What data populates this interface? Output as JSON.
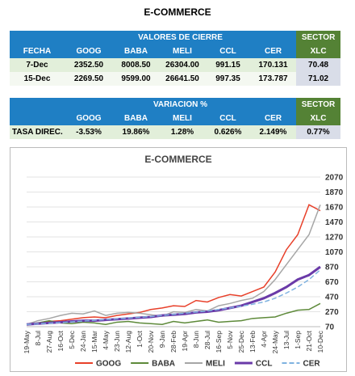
{
  "title": "E-COMMERCE",
  "table1": {
    "group_header": "VALORES DE CIERRE",
    "sector_header": "SECTOR",
    "columns": [
      "FECHA",
      "GOOG",
      "BABA",
      "MELI",
      "CCL",
      "CER",
      "XLC"
    ],
    "rows": [
      [
        "7-Dec",
        "2352.50",
        "8008.50",
        "26304.00",
        "991.15",
        "170.131",
        "70.48"
      ],
      [
        "15-Dec",
        "2269.50",
        "9599.00",
        "26641.50",
        "997.35",
        "173.787",
        "71.02"
      ]
    ]
  },
  "table2": {
    "group_header": "VARIACION %",
    "sector_header": "SECTOR",
    "columns": [
      "GOOG",
      "BABA",
      "MELI",
      "CCL",
      "CER",
      "XLC"
    ],
    "rows": [
      [
        "TASA DIREC.",
        "-3.53%",
        "19.86%",
        "1.28%",
        "0.626%",
        "2.149%",
        "0.77%"
      ]
    ]
  },
  "chart_data": {
    "type": "line",
    "title": "E-COMMERCE",
    "categories": [
      "19-May",
      "8-Jul",
      "27-Aug",
      "16-Oct",
      "5-Dec",
      "24-Jan",
      "15-Mar",
      "4-May",
      "23-Jun",
      "12-Aug",
      "1-Oct",
      "20-Nov",
      "9-Jan",
      "28-Feb",
      "19-Apr",
      "8-Jun",
      "28-Jul",
      "16-Sep",
      "5-Nov",
      "25-Dec",
      "13-Feb",
      "4-Apr",
      "24-May",
      "13-Jul",
      "1-Sep",
      "21-Oct",
      "10-Dec"
    ],
    "ylim": [
      70,
      2070
    ],
    "yticks": [
      70,
      270,
      470,
      670,
      870,
      1070,
      1270,
      1470,
      1670,
      1870,
      2070
    ],
    "grid": true,
    "legend": "bottom",
    "series": [
      {
        "name": "GOOG",
        "color": "#e8402a",
        "values": [
          100,
          110,
          140,
          150,
          170,
          190,
          200,
          190,
          220,
          240,
          260,
          300,
          320,
          350,
          340,
          420,
          400,
          460,
          500,
          480,
          540,
          600,
          800,
          1100,
          1300,
          1700,
          1620
        ]
      },
      {
        "name": "BABA",
        "color": "#5e8a3a",
        "values": [
          100,
          120,
          150,
          120,
          110,
          130,
          120,
          100,
          130,
          140,
          120,
          110,
          100,
          140,
          120,
          140,
          160,
          130,
          140,
          150,
          180,
          190,
          200,
          250,
          290,
          300,
          380
        ]
      },
      {
        "name": "MELI",
        "color": "#a6a6a6",
        "values": [
          100,
          150,
          180,
          220,
          250,
          240,
          280,
          220,
          250,
          260,
          250,
          230,
          210,
          270,
          260,
          300,
          280,
          350,
          380,
          420,
          450,
          540,
          700,
          900,
          1100,
          1300,
          1700
        ]
      },
      {
        "name": "CCL",
        "color": "#6a3aa8",
        "values": [
          100,
          110,
          120,
          130,
          140,
          150,
          150,
          160,
          170,
          180,
          190,
          200,
          220,
          230,
          240,
          260,
          270,
          290,
          320,
          350,
          400,
          450,
          520,
          600,
          700,
          760,
          870
        ]
      },
      {
        "name": "CER",
        "color": "#7fb2e0",
        "values": [
          100,
          108,
          116,
          125,
          135,
          145,
          155,
          165,
          175,
          185,
          195,
          205,
          220,
          235,
          250,
          265,
          280,
          300,
          320,
          345,
          370,
          400,
          450,
          520,
          600,
          700,
          830
        ]
      }
    ]
  }
}
